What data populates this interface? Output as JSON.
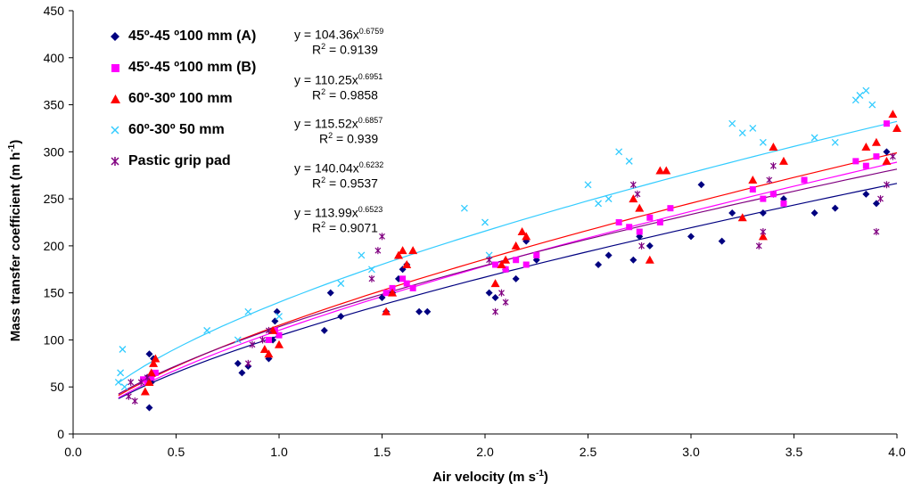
{
  "chart_data": {
    "type": "scatter",
    "xlabel": "Air velocity (m s",
    "xlabel_sup": "-1",
    "xlabel_end": ")",
    "ylabel": "Mass transfer coefficient (m h",
    "ylabel_sup": "-1",
    "ylabel_end": ")",
    "xlim": [
      0,
      4
    ],
    "ylim": [
      0,
      450
    ],
    "x_ticks": [
      "0.0",
      "0.5",
      "1.0",
      "1.5",
      "2.0",
      "2.5",
      "3.0",
      "3.5",
      "4.0"
    ],
    "y_ticks": [
      "0",
      "50",
      "100",
      "150",
      "200",
      "250",
      "300",
      "350",
      "400",
      "450"
    ],
    "grid": false,
    "legend_position": "top-left",
    "series": [
      {
        "name": "45º-45 º100 mm (A)",
        "color": "#000080",
        "marker": "diamond",
        "fit": {
          "a": 104.36,
          "b": 0.6759,
          "r2": "0.9139",
          "eq_prefix": "y = 104.36x",
          "eq_exp": "0.6759"
        },
        "x": [
          0.37,
          0.38,
          0.39,
          0.37,
          0.36,
          0.8,
          0.82,
          0.85,
          0.95,
          0.97,
          0.98,
          0.99,
          1.22,
          1.25,
          1.3,
          1.5,
          1.52,
          1.55,
          1.58,
          1.6,
          1.62,
          1.68,
          1.72,
          2.02,
          2.05,
          2.1,
          2.15,
          2.2,
          2.25,
          2.55,
          2.6,
          2.72,
          2.75,
          2.8,
          3.0,
          3.05,
          3.15,
          3.2,
          3.35,
          3.4,
          3.45,
          3.6,
          3.7,
          3.85,
          3.9,
          3.95
        ],
        "y": [
          28,
          55,
          80,
          85,
          60,
          75,
          65,
          72,
          80,
          100,
          120,
          130,
          110,
          150,
          125,
          145,
          130,
          150,
          165,
          175,
          180,
          130,
          130,
          150,
          145,
          175,
          165,
          205,
          185,
          180,
          190,
          185,
          210,
          200,
          210,
          265,
          205,
          235,
          235,
          255,
          250,
          235,
          240,
          255,
          245,
          300
        ]
      },
      {
        "name": "45º-45 º100 mm (B)",
        "color": "#ff00ff",
        "marker": "square",
        "fit": {
          "a": 110.25,
          "b": 0.6951,
          "r2": "0.9858",
          "eq_prefix": "y = 110.25x",
          "eq_exp": "0.6951"
        },
        "x": [
          0.34,
          0.36,
          0.38,
          0.4,
          0.95,
          0.98,
          1.0,
          1.52,
          1.55,
          1.6,
          1.62,
          1.65,
          2.05,
          2.1,
          2.15,
          2.2,
          2.25,
          2.65,
          2.7,
          2.75,
          2.8,
          2.85,
          2.9,
          3.3,
          3.35,
          3.4,
          3.45,
          3.55,
          3.8,
          3.85,
          3.9,
          3.95
        ],
        "y": [
          58,
          55,
          60,
          65,
          100,
          110,
          105,
          150,
          155,
          165,
          160,
          155,
          180,
          175,
          185,
          180,
          190,
          225,
          220,
          215,
          230,
          225,
          240,
          260,
          250,
          255,
          245,
          270,
          290,
          285,
          295,
          330
        ]
      },
      {
        "name": "60º-30º 100 mm",
        "color": "#ff0000",
        "marker": "triangle",
        "fit": {
          "a": 115.52,
          "b": 0.6857,
          "r2": "0.939",
          "eq_prefix": "y = 115.52x",
          "eq_exp": "0.6857"
        },
        "x": [
          0.35,
          0.37,
          0.38,
          0.39,
          0.4,
          0.93,
          0.95,
          0.97,
          1.0,
          1.52,
          1.55,
          1.58,
          1.6,
          1.62,
          1.65,
          2.05,
          2.08,
          2.1,
          2.15,
          2.18,
          2.2,
          2.72,
          2.75,
          2.8,
          2.85,
          2.88,
          3.25,
          3.3,
          3.35,
          3.4,
          3.45,
          3.85,
          3.9,
          3.95,
          3.98,
          4.0
        ],
        "y": [
          45,
          55,
          65,
          75,
          80,
          90,
          85,
          110,
          95,
          130,
          150,
          190,
          195,
          180,
          195,
          160,
          180,
          185,
          200,
          215,
          210,
          250,
          240,
          185,
          280,
          280,
          230,
          270,
          210,
          305,
          290,
          305,
          310,
          290,
          340,
          325
        ]
      },
      {
        "name": "60º-30º 50 mm",
        "color": "#33ccff",
        "marker": "cross",
        "fit": {
          "a": 140.04,
          "b": 0.6232,
          "r2": "0.9537",
          "eq_prefix": "y = 140.04x",
          "eq_exp": "0.6232"
        },
        "x": [
          0.22,
          0.23,
          0.24,
          0.25,
          0.65,
          0.8,
          0.85,
          1.0,
          1.3,
          1.4,
          1.45,
          1.9,
          2.0,
          2.02,
          2.5,
          2.55,
          2.6,
          2.65,
          2.7,
          3.2,
          3.25,
          3.3,
          3.35,
          3.6,
          3.7,
          3.8,
          3.82,
          3.85,
          3.88
        ],
        "y": [
          55,
          65,
          90,
          50,
          110,
          100,
          130,
          125,
          160,
          190,
          175,
          240,
          225,
          190,
          265,
          245,
          250,
          300,
          290,
          330,
          320,
          325,
          310,
          315,
          310,
          355,
          360,
          365,
          350
        ]
      },
      {
        "name": "Pastic grip pad",
        "color": "#800080",
        "marker": "star",
        "fit": {
          "a": 113.99,
          "b": 0.6523,
          "r2": "0.9071",
          "eq_prefix": "y = 113.99x",
          "eq_exp": "0.6523"
        },
        "x": [
          0.27,
          0.28,
          0.3,
          0.33,
          0.36,
          0.85,
          0.87,
          0.92,
          0.95,
          1.45,
          1.48,
          1.5,
          2.02,
          2.05,
          2.08,
          2.1,
          2.72,
          2.74,
          2.76,
          3.33,
          3.35,
          3.38,
          3.4,
          3.9,
          3.92,
          3.95,
          3.98
        ],
        "y": [
          40,
          55,
          35,
          55,
          60,
          75,
          95,
          100,
          110,
          165,
          195,
          210,
          185,
          130,
          150,
          140,
          265,
          255,
          200,
          200,
          215,
          270,
          285,
          215,
          250,
          265,
          295
        ]
      }
    ]
  }
}
